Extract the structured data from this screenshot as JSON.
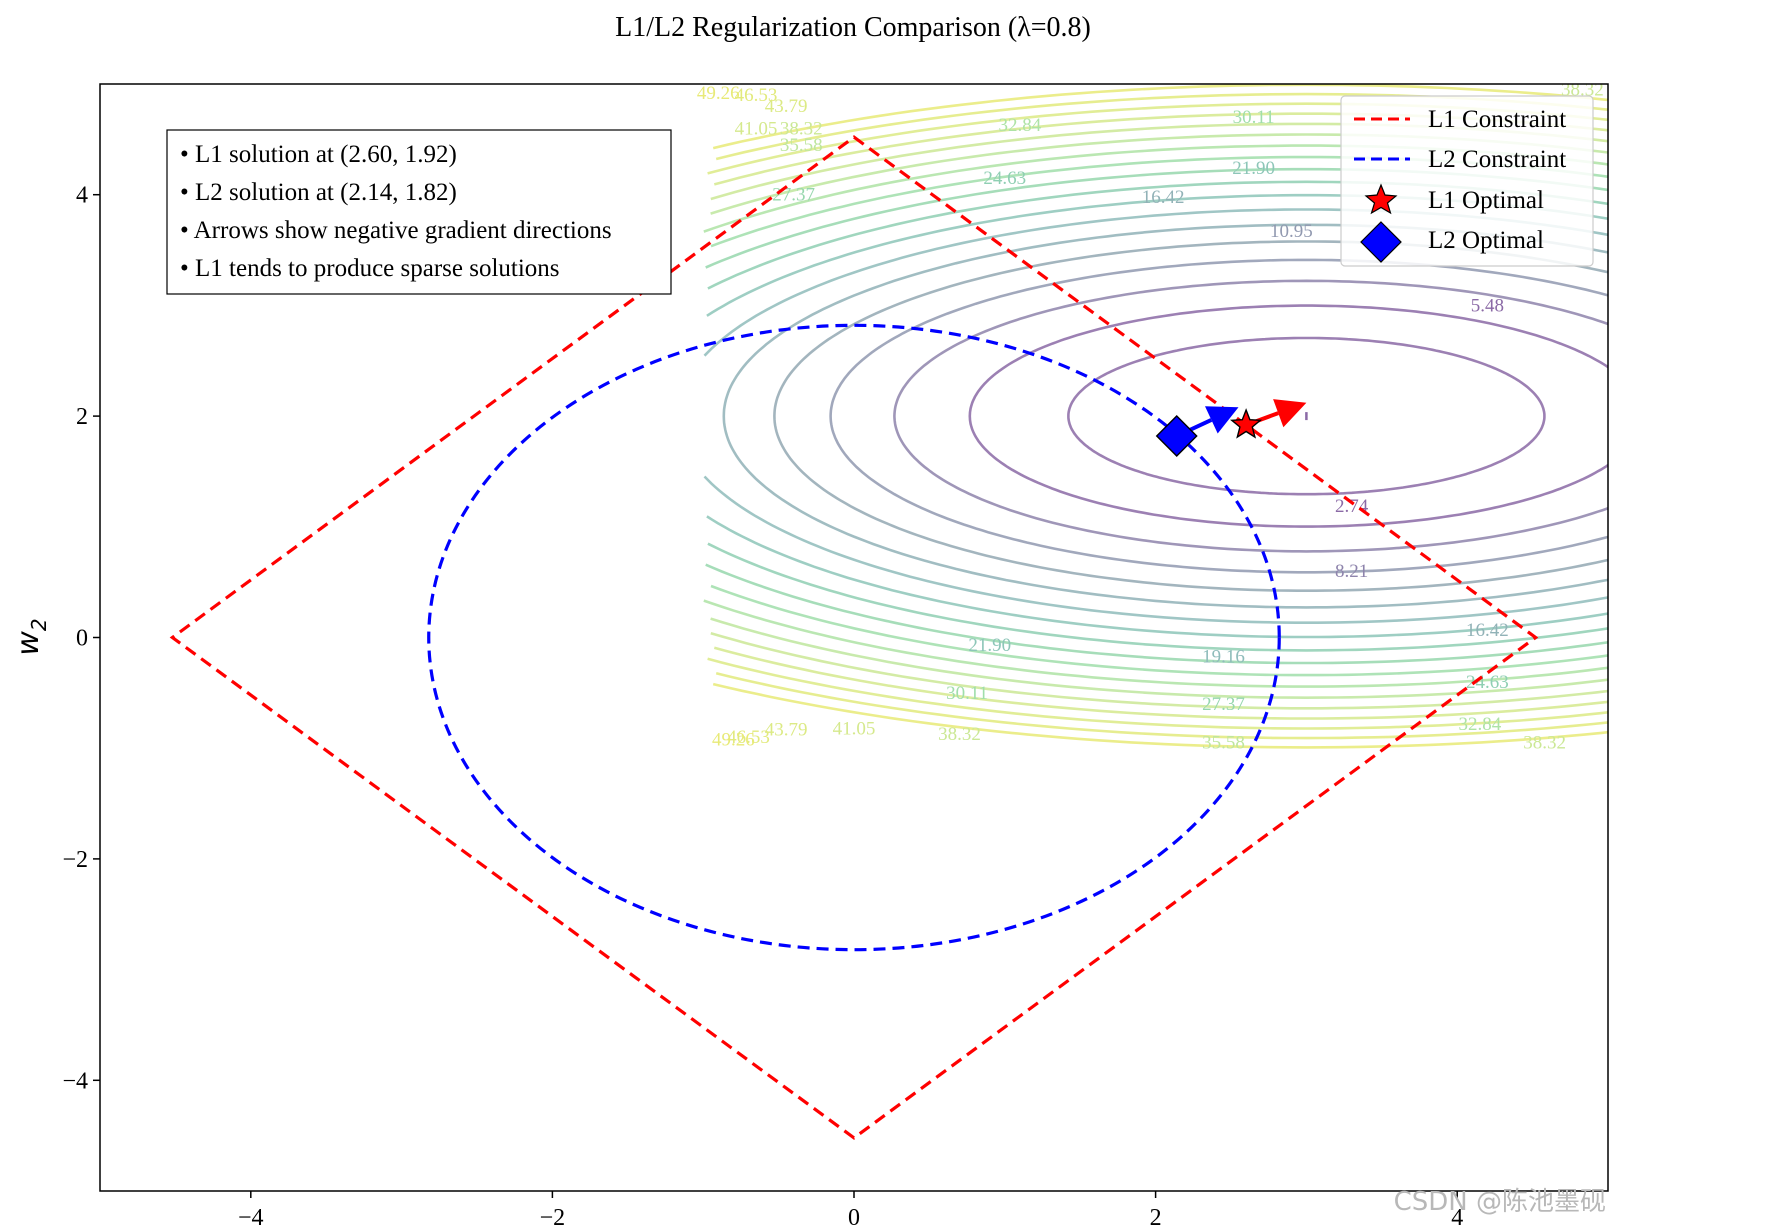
{
  "chart_data": {
    "type": "contour",
    "title": "L1/L2 Regularization Comparison (λ=0.8)",
    "xlabel": "",
    "ylabel": "w",
    "ylabel_subscript": "2",
    "xlim": [
      -5,
      5
    ],
    "ylim": [
      -5,
      5
    ],
    "xticks": [
      -4,
      -2,
      0,
      2,
      4
    ],
    "yticks": [
      -4,
      -2,
      0,
      2,
      4
    ],
    "xtick_labels": [
      "−4",
      "−2",
      "0",
      "2",
      "4"
    ],
    "ytick_labels": [
      "−4",
      "−2",
      "0",
      "2",
      "4"
    ],
    "contour": {
      "center": [
        3,
        2
      ],
      "x_range": [
        -1,
        5
      ],
      "levels": [
        2.74,
        5.48,
        8.21,
        10.95,
        13.69,
        16.42,
        19.16,
        21.9,
        24.63,
        27.37,
        30.11,
        32.84,
        35.58,
        38.32,
        41.05,
        43.79,
        46.53,
        49.26
      ],
      "colors": [
        "#8b6aa6",
        "#8b6aa6",
        "#8e84ac",
        "#9199b0",
        "#93a8b3",
        "#91b2b7",
        "#8fbcbb",
        "#8dc6b8",
        "#8fcfb3",
        "#96d7ad",
        "#a0deaa",
        "#aee3a5",
        "#bee69e",
        "#cbe895",
        "#d5e98d",
        "#dcea85",
        "#e2ea7d",
        "#e8ea77"
      ],
      "labels": [
        {
          "text": "2.74",
          "x": 3.3,
          "y": 1.19
        },
        {
          "text": "5.48",
          "x": 4.2,
          "y": 3.0
        },
        {
          "text": "8.21",
          "x": 3.3,
          "y": 0.6
        },
        {
          "text": "10.95",
          "x": 2.9,
          "y": 3.67
        },
        {
          "text": "16.42",
          "x": 2.05,
          "y": 3.98
        },
        {
          "text": "16.42",
          "x": 4.2,
          "y": 0.07
        },
        {
          "text": "19.16",
          "x": 2.45,
          "y": -0.17
        },
        {
          "text": "21.90",
          "x": 2.65,
          "y": 4.24
        },
        {
          "text": "21.90",
          "x": 0.9,
          "y": -0.07
        },
        {
          "text": "24.63",
          "x": 1.0,
          "y": 4.15
        },
        {
          "text": "24.63",
          "x": 4.2,
          "y": -0.4
        },
        {
          "text": "27.37",
          "x": 2.45,
          "y": -0.6
        },
        {
          "text": "27.37",
          "x": -0.4,
          "y": 4.0
        },
        {
          "text": "30.11",
          "x": 2.65,
          "y": 4.7
        },
        {
          "text": "30.11",
          "x": 0.75,
          "y": -0.5
        },
        {
          "text": "32.84",
          "x": 1.1,
          "y": 4.63
        },
        {
          "text": "32.84",
          "x": 4.15,
          "y": -0.78
        },
        {
          "text": "35.58",
          "x": 2.45,
          "y": -0.95
        },
        {
          "text": "35.58",
          "x": -0.35,
          "y": 4.45
        },
        {
          "text": "38.32",
          "x": 4.58,
          "y": -0.95
        },
        {
          "text": "38.32",
          "x": 0.7,
          "y": -0.87
        },
        {
          "text": "38.32",
          "x": -0.35,
          "y": 4.6
        },
        {
          "text": "38.32",
          "x": 4.83,
          "y": 4.95
        },
        {
          "text": "41.05",
          "x": 0.0,
          "y": -0.82
        },
        {
          "text": "41.05",
          "x": -0.65,
          "y": 4.6
        },
        {
          "text": "43.79",
          "x": -0.45,
          "y": -0.83
        },
        {
          "text": "43.79",
          "x": -0.45,
          "y": 4.8
        },
        {
          "text": "46.53",
          "x": -0.7,
          "y": -0.9
        },
        {
          "text": "46.53",
          "x": -0.65,
          "y": 4.9
        },
        {
          "text": "49.26",
          "x": -0.8,
          "y": -0.92
        },
        {
          "text": "49.26",
          "x": -0.9,
          "y": 4.92
        }
      ]
    },
    "series": [
      {
        "name": "L1 Constraint",
        "type": "line",
        "style": "dashed",
        "color": "#ff0000",
        "shape": "diamond",
        "radius": 4.52
      },
      {
        "name": "L2 Constraint",
        "type": "line",
        "style": "dashed",
        "color": "#0000ff",
        "shape": "circle",
        "radius": 2.82
      },
      {
        "name": "L1 Optimal",
        "type": "scatter",
        "marker": "star",
        "color": "#ff0000",
        "x": 2.6,
        "y": 1.92
      },
      {
        "name": "L2 Optimal",
        "type": "scatter",
        "marker": "diamond",
        "color": "#0000ff",
        "x": 2.14,
        "y": 1.82
      }
    ],
    "arrows": [
      {
        "from": [
          2.6,
          1.92
        ],
        "to": [
          3.0,
          2.12
        ],
        "color": "#ff0000"
      },
      {
        "from": [
          2.14,
          1.82
        ],
        "to": [
          2.55,
          2.08
        ],
        "color": "#0000ff"
      }
    ],
    "legend": {
      "position": "upper-right",
      "entries": [
        "L1 Constraint",
        "L2 Constraint",
        "L1 Optimal",
        "L2 Optimal"
      ]
    },
    "info_box": {
      "position": "upper-left",
      "lines": [
        "• L1 solution at (2.60, 1.92)",
        "• L2 solution at (2.14, 1.82)",
        "• Arrows show negative gradient directions",
        "• L1 tends to produce sparse solutions"
      ]
    }
  },
  "watermark": "CSDN @陈池墨砚"
}
